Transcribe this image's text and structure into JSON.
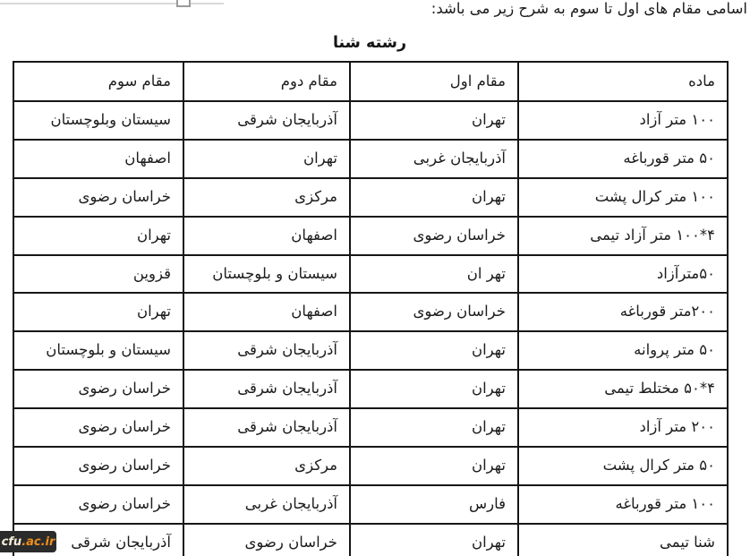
{
  "page": {
    "intro_text": "اسامی مقام های اول تا سوم به شرح زیر می باشد:",
    "section_title": "رشته شنا"
  },
  "table": {
    "headers": [
      "ماده",
      "مقام اول",
      "مقام دوم",
      "مقام سوم"
    ],
    "rows": [
      [
        "۱۰۰ متر آزاد",
        "تهران",
        "آذربایجان شرقی",
        "سیستان وبلوچستان"
      ],
      [
        "۵۰ متر قورباغه",
        "آذربایجان غربی",
        "تهران",
        "اصفهان"
      ],
      [
        "۱۰۰ متر کرال پشت",
        "تهران",
        "مرکزی",
        "خراسان رضوی"
      ],
      [
        "۴*۱۰۰ متر آزاد تیمی",
        "خراسان رضوی",
        "اصفهان",
        "تهران"
      ],
      [
        "۵۰مترآزاد",
        "تهر ان",
        "سیستان و بلوچستان",
        "قزوین"
      ],
      [
        "۲۰۰متر قورباغه",
        "خراسان رضوی",
        "اصفهان",
        "تهران"
      ],
      [
        "۵۰ متر پروانه",
        "تهران",
        "آذربایجان شرقی",
        "سیستان و بلوچستان"
      ],
      [
        "۴*۵۰ مختلط تیمی",
        "تهران",
        "آذربایجان شرقی",
        "خراسان رضوی"
      ],
      [
        "۲۰۰ متر آزاد",
        "تهران",
        "آذربایجان شرقی",
        "خراسان رضوی"
      ],
      [
        "۵۰ متر کرال پشت",
        "تهران",
        "مرکزی",
        "خراسان رضوی"
      ],
      [
        "۱۰۰ متر قورباغه",
        "فارس",
        "آذربایجان غربی",
        "خراسان رضوی"
      ],
      [
        "شنا تیمی",
        "تهران",
        "خراسان رضوی",
        "آذربایجان شرقی"
      ]
    ]
  },
  "watermark": {
    "brand": "cfu",
    "domain_suffix": ".ac.ir",
    "bg_color": "#2b2b2b",
    "brand_color": "#f4ecd9",
    "suffix_color": "#ee8f1d"
  },
  "colors": {
    "table_border": "#161616",
    "text": "#1d1d1d",
    "background": "#ffffff"
  }
}
